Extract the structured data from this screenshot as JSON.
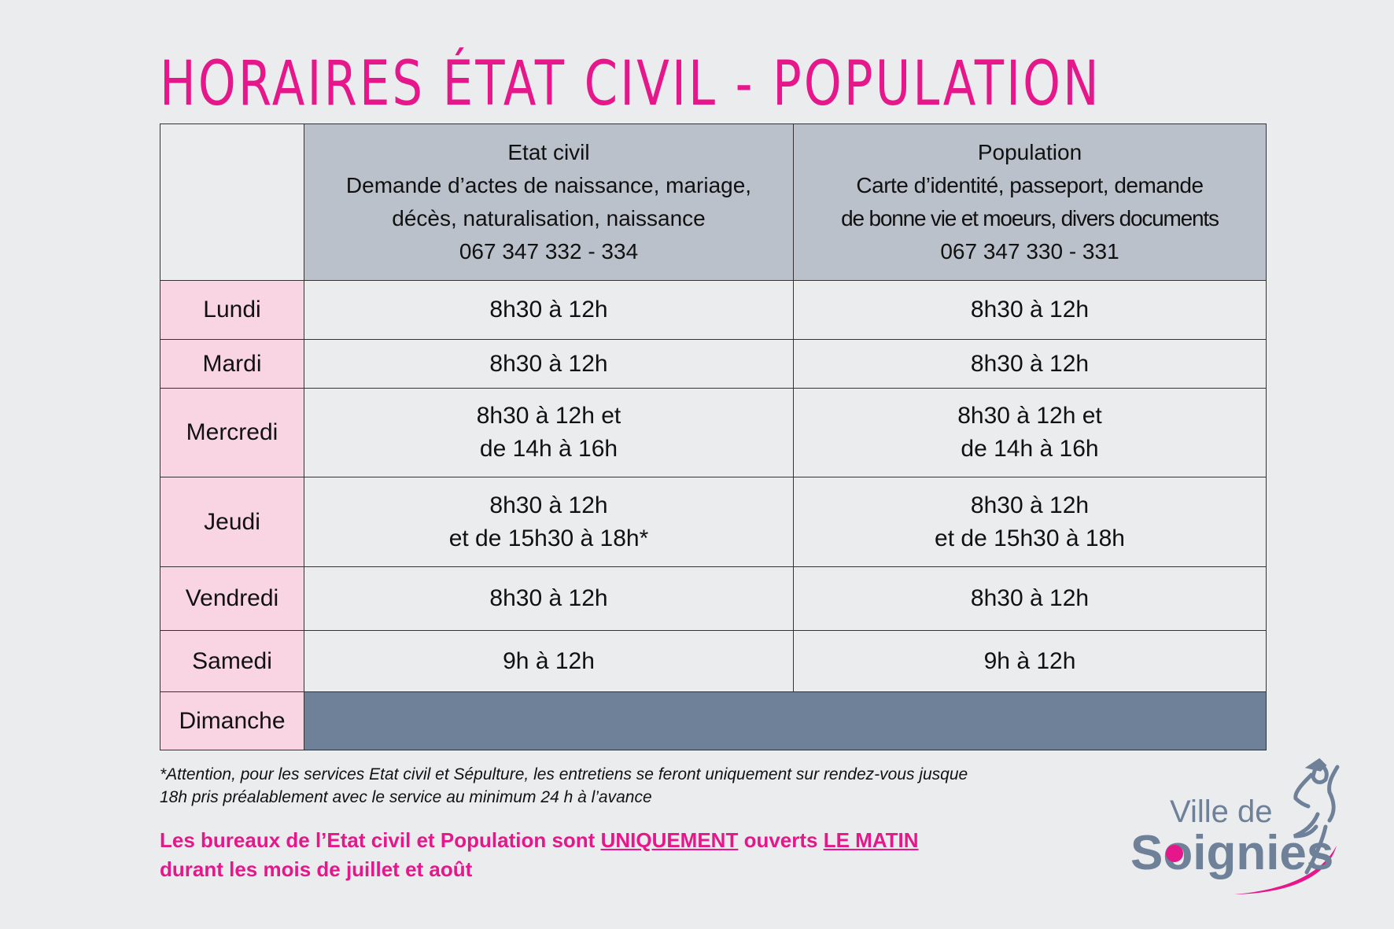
{
  "title": "HORAIRES ÉTAT CIVIL - POPULATION",
  "columns": [
    {
      "name": "Etat civil",
      "desc1": "Demande d’actes de naissance, mariage,",
      "desc2": "décès, naturalisation, naissance",
      "phone": "067 347 332 - 334"
    },
    {
      "name": "Population",
      "desc1": "Carte d’identité, passeport, demande",
      "desc2": "de bonne vie et moeurs, divers documents",
      "phone": "067 347 330 - 331"
    }
  ],
  "rows": [
    {
      "day": "Lundi",
      "etat": [
        "8h30 à 12h"
      ],
      "pop": [
        "8h30 à 12h"
      ]
    },
    {
      "day": "Mardi",
      "etat": [
        "8h30 à 12h"
      ],
      "pop": [
        "8h30 à 12h"
      ]
    },
    {
      "day": "Mercredi",
      "etat": [
        "8h30 à 12h et",
        "de 14h à 16h"
      ],
      "pop": [
        "8h30 à 12h et",
        "de 14h à 16h"
      ]
    },
    {
      "day": "Jeudi",
      "etat": [
        "8h30 à 12h",
        "et de 15h30 à 18h*"
      ],
      "pop": [
        "8h30 à 12h",
        "et de 15h30 à 18h"
      ]
    },
    {
      "day": "Vendredi",
      "etat": [
        "8h30 à 12h"
      ],
      "pop": [
        "8h30 à 12h"
      ]
    },
    {
      "day": "Samedi",
      "etat": [
        "9h à 12h"
      ],
      "pop": [
        "9h à 12h"
      ]
    },
    {
      "day": "Dimanche"
    }
  ],
  "footnote": {
    "line1": "*Attention, pour les services Etat civil et Sépulture, les entretiens se feront uniquement sur rendez-vous jusque",
    "line2": "18h pris préalablement avec le service au minimum 24 h à l’avance"
  },
  "notice": {
    "part1": "Les bureaux de l’Etat civil et Population sont ",
    "u1": "UNIQUEMENT",
    "part2": " ouverts ",
    "u2": "LE MATIN",
    "line2": "durant les mois de juillet et août"
  },
  "logo": {
    "line1": "Ville de",
    "line2": "Soignies"
  },
  "colors": {
    "pink": "#e6178a",
    "header": "#bac1cb",
    "day": "#f9d5e3",
    "closed": "#6e8198"
  }
}
